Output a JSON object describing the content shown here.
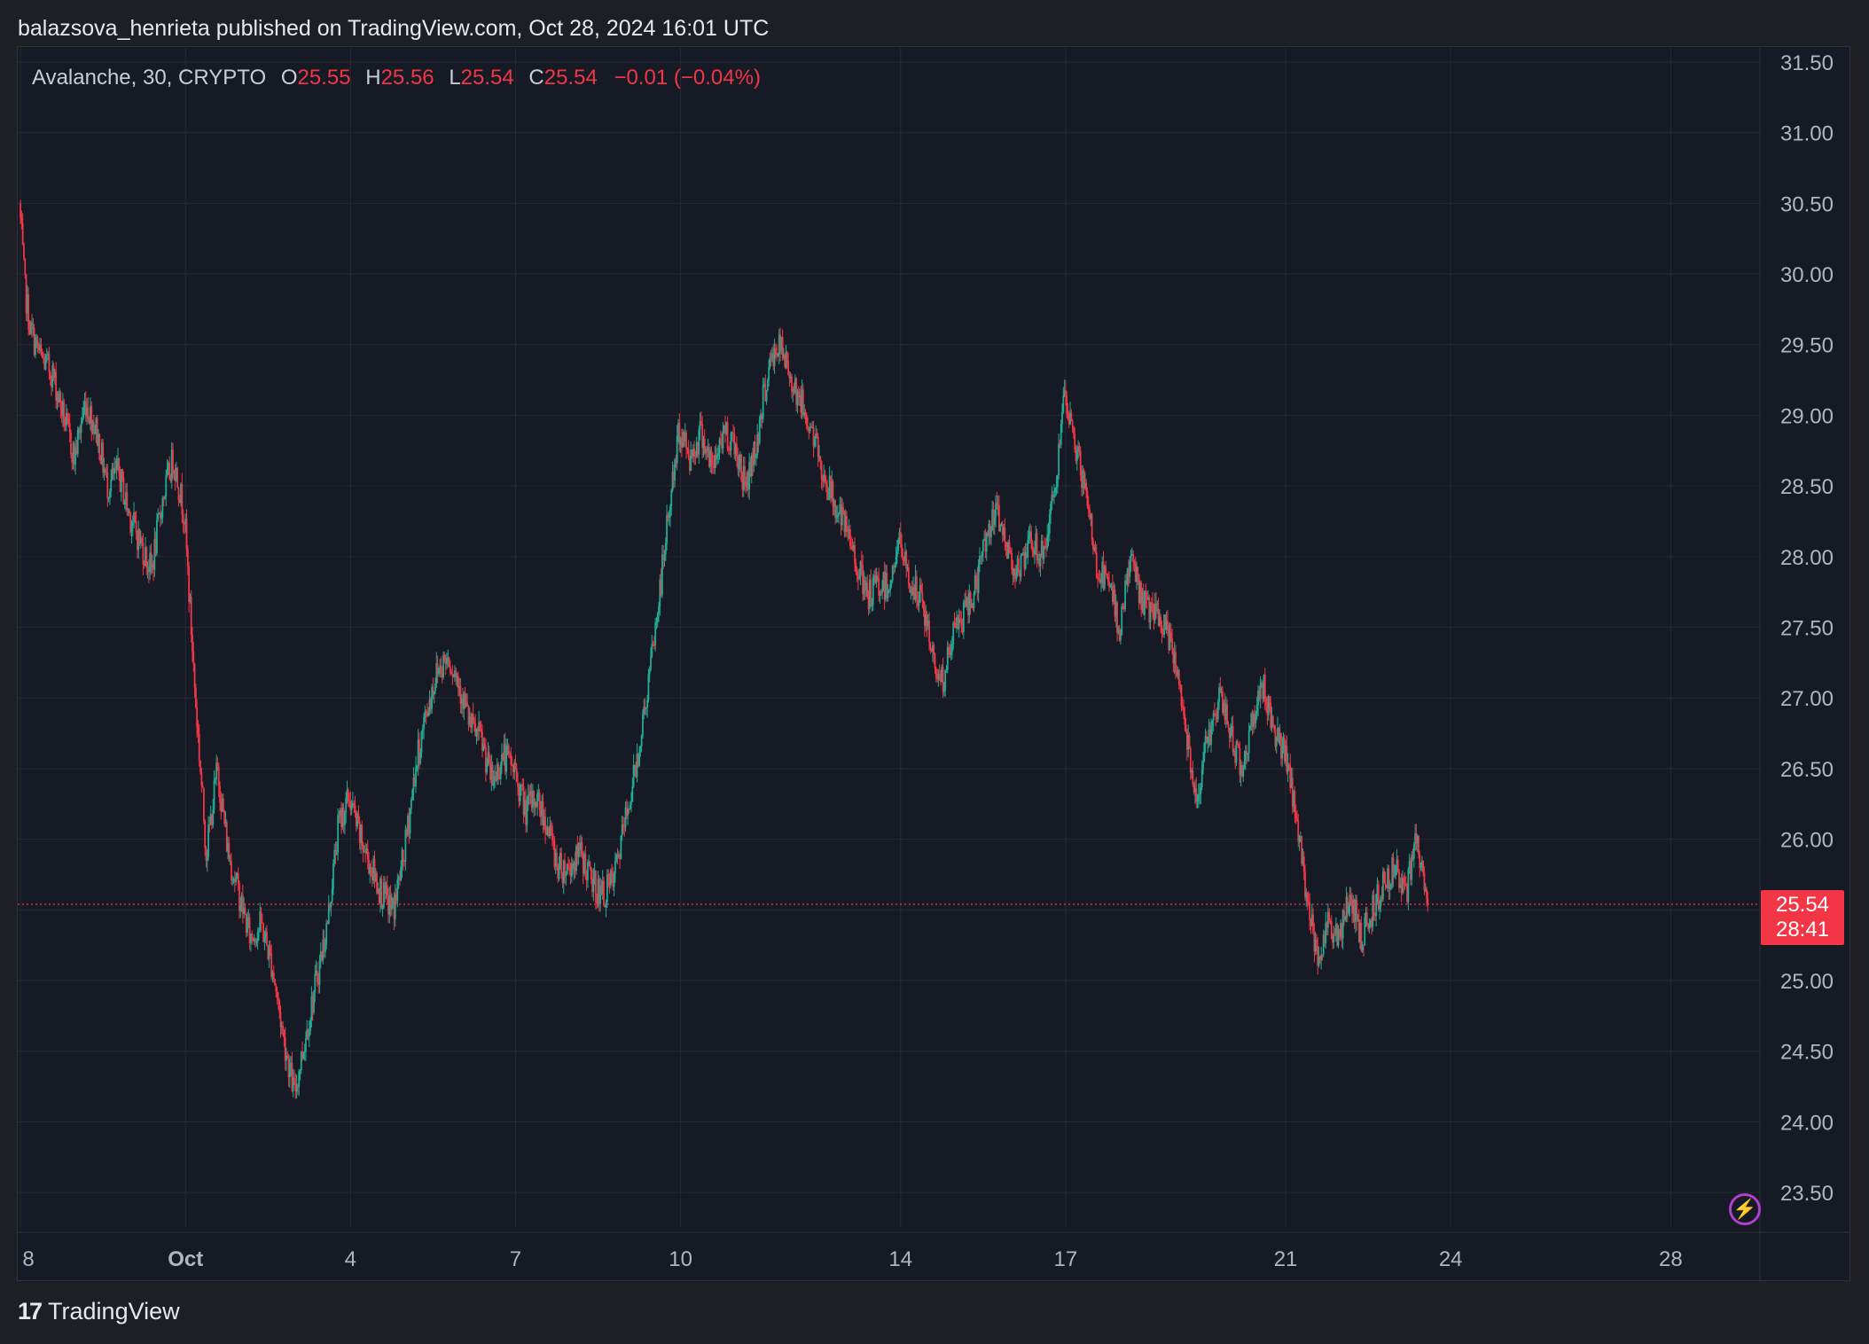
{
  "header": {
    "published_text": "balazsova_henrieta published on TradingView.com, Oct 28, 2024 16:01 UTC"
  },
  "legend": {
    "symbol": "Avalanche, 30, CRYPTO",
    "o_label": "O",
    "o_value": "25.55",
    "h_label": "H",
    "h_value": "25.56",
    "l_label": "L",
    "l_value": "25.54",
    "c_label": "C",
    "c_value": "25.54",
    "change": "−0.01 (−0.04%)"
  },
  "price_badge": {
    "price": "25.54",
    "countdown": "28:41"
  },
  "footer": {
    "logo_mark": "17",
    "logo_text": "TradingView"
  },
  "colors": {
    "background": "#161a25",
    "grid": "#262a35",
    "up": "#22ab94",
    "down": "#f23645",
    "text": "#b2b5be",
    "badge": "#f23645"
  },
  "chart_data": {
    "type": "candlestick",
    "title": "",
    "xlabel": "",
    "ylabel": "",
    "interval": "30",
    "ylim": [
      23.25,
      31.6
    ],
    "y_ticks": [
      "31.50",
      "31.00",
      "30.50",
      "30.00",
      "29.50",
      "29.00",
      "28.50",
      "28.00",
      "27.50",
      "27.00",
      "26.50",
      "26.00",
      "25.50",
      "25.00",
      "24.50",
      "24.00",
      "23.50"
    ],
    "x_ticks": [
      {
        "label": "8",
        "day": -2
      },
      {
        "label": "Oct",
        "day": 1
      },
      {
        "label": "4",
        "day": 4
      },
      {
        "label": "7",
        "day": 7
      },
      {
        "label": "10",
        "day": 10
      },
      {
        "label": "14",
        "day": 14
      },
      {
        "label": "17",
        "day": 17
      },
      {
        "label": "21",
        "day": 21
      },
      {
        "label": "24",
        "day": 24
      },
      {
        "label": "28",
        "day": 28
      }
    ],
    "grid": true,
    "last_price": 25.54,
    "price_path": [
      [
        -2.0,
        30.5
      ],
      [
        -1.9,
        29.9
      ],
      [
        -1.8,
        29.6
      ],
      [
        -1.6,
        29.4
      ],
      [
        -1.4,
        29.3
      ],
      [
        -1.2,
        29.0
      ],
      [
        -1.0,
        28.7
      ],
      [
        -0.8,
        29.1
      ],
      [
        -0.6,
        28.9
      ],
      [
        -0.4,
        28.5
      ],
      [
        -0.2,
        28.6
      ],
      [
        0.0,
        28.3
      ],
      [
        0.2,
        28.1
      ],
      [
        0.4,
        27.9
      ],
      [
        0.6,
        28.4
      ],
      [
        0.8,
        28.7
      ],
      [
        1.0,
        28.3
      ],
      [
        1.2,
        27.0
      ],
      [
        1.4,
        25.9
      ],
      [
        1.6,
        26.5
      ],
      [
        1.8,
        25.9
      ],
      [
        2.0,
        25.6
      ],
      [
        2.2,
        25.3
      ],
      [
        2.4,
        25.4
      ],
      [
        2.6,
        25.1
      ],
      [
        2.8,
        24.6
      ],
      [
        3.0,
        24.2
      ],
      [
        3.2,
        24.6
      ],
      [
        3.4,
        25.0
      ],
      [
        3.6,
        25.4
      ],
      [
        3.8,
        26.1
      ],
      [
        4.0,
        26.3
      ],
      [
        4.2,
        26.0
      ],
      [
        4.4,
        25.8
      ],
      [
        4.6,
        25.6
      ],
      [
        4.8,
        25.5
      ],
      [
        5.0,
        25.9
      ],
      [
        5.2,
        26.5
      ],
      [
        5.4,
        26.9
      ],
      [
        5.6,
        27.2
      ],
      [
        5.8,
        27.3
      ],
      [
        6.0,
        27.1
      ],
      [
        6.2,
        26.8
      ],
      [
        6.4,
        26.7
      ],
      [
        6.6,
        26.4
      ],
      [
        6.8,
        26.6
      ],
      [
        7.0,
        26.5
      ],
      [
        7.2,
        26.2
      ],
      [
        7.4,
        26.3
      ],
      [
        7.6,
        26.1
      ],
      [
        7.8,
        25.8
      ],
      [
        8.0,
        25.8
      ],
      [
        8.2,
        25.9
      ],
      [
        8.4,
        25.7
      ],
      [
        8.6,
        25.6
      ],
      [
        8.8,
        25.7
      ],
      [
        9.0,
        26.1
      ],
      [
        9.2,
        26.5
      ],
      [
        9.4,
        27.0
      ],
      [
        9.6,
        27.6
      ],
      [
        9.8,
        28.3
      ],
      [
        10.0,
        28.9
      ],
      [
        10.2,
        28.7
      ],
      [
        10.4,
        28.9
      ],
      [
        10.6,
        28.6
      ],
      [
        10.8,
        28.9
      ],
      [
        11.0,
        28.8
      ],
      [
        11.2,
        28.5
      ],
      [
        11.4,
        28.8
      ],
      [
        11.6,
        29.3
      ],
      [
        11.8,
        29.5
      ],
      [
        12.0,
        29.3
      ],
      [
        12.2,
        29.1
      ],
      [
        12.4,
        28.9
      ],
      [
        12.6,
        28.6
      ],
      [
        12.8,
        28.4
      ],
      [
        13.0,
        28.2
      ],
      [
        13.2,
        28.0
      ],
      [
        13.4,
        27.7
      ],
      [
        13.6,
        27.8
      ],
      [
        13.8,
        27.8
      ],
      [
        14.0,
        28.1
      ],
      [
        14.2,
        27.8
      ],
      [
        14.4,
        27.7
      ],
      [
        14.6,
        27.3
      ],
      [
        14.8,
        27.1
      ],
      [
        15.0,
        27.5
      ],
      [
        15.2,
        27.6
      ],
      [
        15.4,
        27.8
      ],
      [
        15.6,
        28.2
      ],
      [
        15.8,
        28.3
      ],
      [
        16.0,
        28.0
      ],
      [
        16.2,
        27.9
      ],
      [
        16.4,
        28.1
      ],
      [
        16.6,
        28.0
      ],
      [
        16.8,
        28.4
      ],
      [
        17.0,
        29.1
      ],
      [
        17.2,
        28.8
      ],
      [
        17.4,
        28.4
      ],
      [
        17.6,
        27.9
      ],
      [
        17.8,
        27.8
      ],
      [
        18.0,
        27.5
      ],
      [
        18.2,
        28.0
      ],
      [
        18.4,
        27.7
      ],
      [
        18.6,
        27.6
      ],
      [
        18.8,
        27.5
      ],
      [
        19.0,
        27.3
      ],
      [
        19.2,
        26.8
      ],
      [
        19.4,
        26.3
      ],
      [
        19.6,
        26.7
      ],
      [
        19.8,
        27.0
      ],
      [
        20.0,
        26.8
      ],
      [
        20.2,
        26.5
      ],
      [
        20.4,
        26.8
      ],
      [
        20.6,
        27.1
      ],
      [
        20.8,
        26.8
      ],
      [
        21.0,
        26.6
      ],
      [
        21.2,
        26.2
      ],
      [
        21.4,
        25.6
      ],
      [
        21.6,
        25.2
      ],
      [
        21.8,
        25.4
      ],
      [
        22.0,
        25.3
      ],
      [
        22.2,
        25.6
      ],
      [
        22.4,
        25.3
      ],
      [
        22.6,
        25.5
      ],
      [
        22.8,
        25.7
      ],
      [
        23.0,
        25.8
      ],
      [
        23.2,
        25.6
      ],
      [
        23.4,
        26.0
      ],
      [
        23.6,
        25.5
      ]
    ]
  }
}
